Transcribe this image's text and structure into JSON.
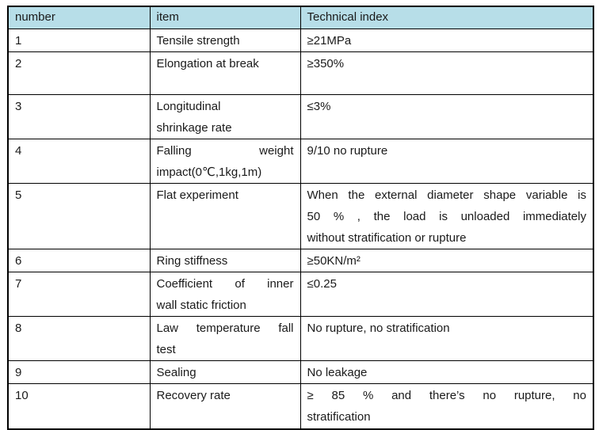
{
  "colors": {
    "header_bg": "#b7dee8",
    "border": "#000000",
    "text": "#1a1a1a",
    "page_bg": "#ffffff"
  },
  "table": {
    "columns": [
      {
        "label": "number"
      },
      {
        "label": "item"
      },
      {
        "label": "Technical index"
      }
    ],
    "rows": [
      {
        "number": "1",
        "item": "Tensile strength",
        "index": "≥21MPa"
      },
      {
        "number": "2",
        "item": "Elongation at break",
        "index": "≥350%"
      },
      {
        "number": "3",
        "item": "Longitudinal\nshrinkage rate",
        "index": "≤3%"
      },
      {
        "number": "4",
        "item": "Falling weight\nimpact(0℃,1kg,1m)",
        "index": "9/10 no rupture"
      },
      {
        "number": "5",
        "item": "Flat experiment",
        "index": "When the external diameter shape variable is\n50 % , the load is unloaded immediately\nwithout stratification or rupture"
      },
      {
        "number": "6",
        "item": "Ring stiffness",
        "index": "≥50KN/m²"
      },
      {
        "number": "7",
        "item": "Coefficient of inner\nwall static friction",
        "index": "≤0.25"
      },
      {
        "number": "8",
        "item": "Law temperature fall\ntest",
        "index": "No rupture, no stratification"
      },
      {
        "number": "9",
        "item": "Sealing",
        "index": "No leakage"
      },
      {
        "number": "10",
        "item": "Recovery rate",
        "index": "≥ 85 % and there’s no rupture, no\nstratification"
      }
    ]
  }
}
